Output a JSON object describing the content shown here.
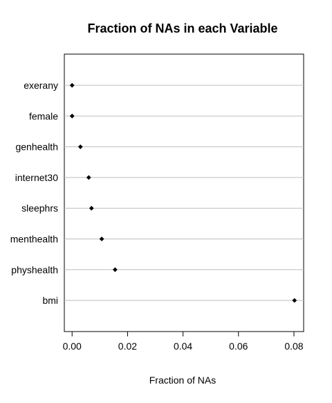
{
  "chart_data": {
    "type": "dotplot",
    "title": "Fraction of NAs in each Variable",
    "xlabel": "Fraction of NAs",
    "ylabel": "",
    "categories": [
      "exerany",
      "female",
      "genhealth",
      "internet30",
      "sleephrs",
      "menthealth",
      "physhealth",
      "bmi"
    ],
    "values": [
      0.0,
      0.0,
      0.003,
      0.006,
      0.007,
      0.0107,
      0.0155,
      0.0802
    ],
    "x_ticks": [
      0.0,
      0.02,
      0.04,
      0.06,
      0.08
    ],
    "x_tick_labels": [
      "0.00",
      "0.02",
      "0.04",
      "0.06",
      "0.08"
    ],
    "xlim": [
      -0.0028,
      0.0835
    ],
    "grid": "horizontal lines at each category",
    "colors": {
      "point": "#000000",
      "gridline": "#bebebe",
      "frame": "#000000"
    }
  }
}
